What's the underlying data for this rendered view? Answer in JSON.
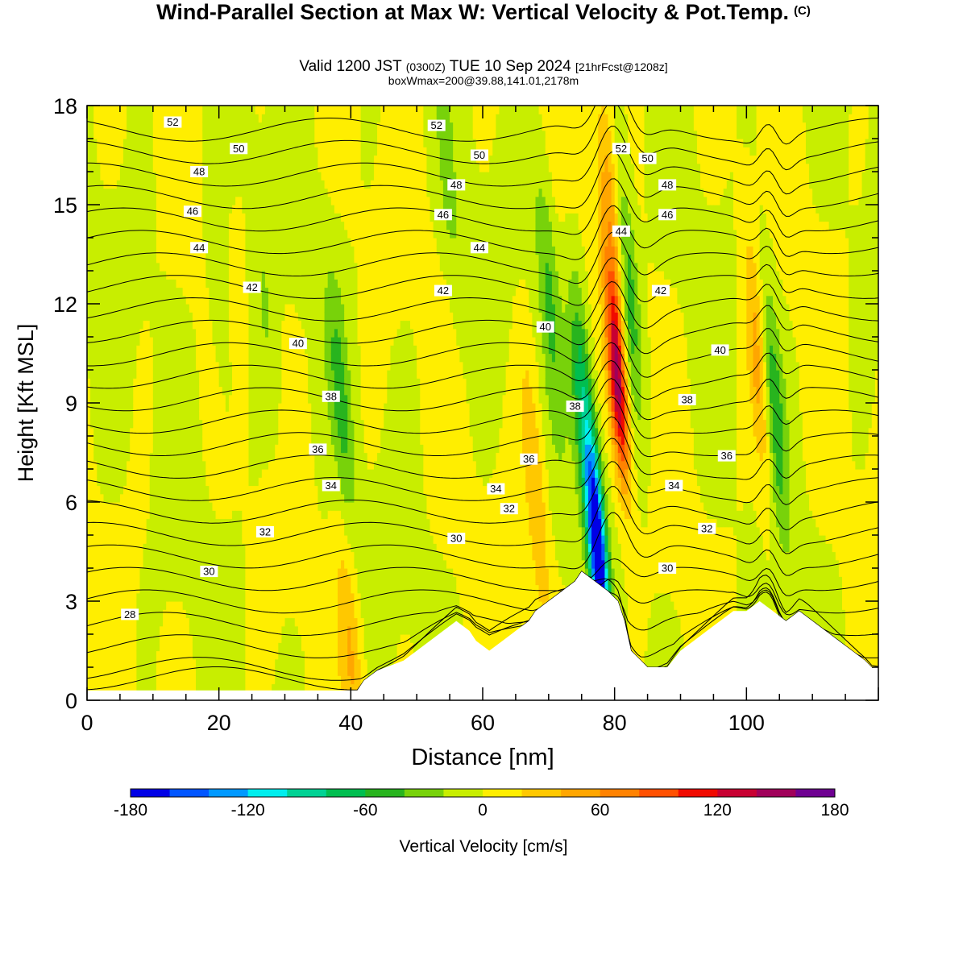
{
  "title": {
    "main": "Wind-Parallel Section at Max W: Vertical Velocity & Pot.Temp.",
    "copyright": "(C)",
    "valid_prefix": "Valid 1200 JST",
    "valid_utc": "(0300Z)",
    "valid_date": "TUE 10 Sep 2024",
    "forecast": "[21hrFcst@1208z]",
    "boxinfo": "boxWmax=200@39.88,141.01,2178m"
  },
  "chart_data": {
    "type": "heatmap",
    "xlabel": "Distance [nm]",
    "ylabel": "Height [Kft MSL]",
    "xlim": [
      0,
      120
    ],
    "ylim": [
      0,
      18
    ],
    "x_ticks": [
      0,
      20,
      40,
      60,
      80,
      100
    ],
    "y_ticks": [
      0,
      3,
      6,
      9,
      12,
      15,
      18
    ],
    "colorbar": {
      "label": "Vertical Velocity [cm/s]",
      "range": [
        -180,
        180
      ],
      "tick_values": [
        -180,
        -120,
        -60,
        0,
        60,
        120,
        180
      ],
      "levels": [
        -180,
        -160,
        -140,
        -120,
        -100,
        -80,
        -60,
        -40,
        -20,
        0,
        20,
        40,
        60,
        80,
        100,
        120,
        140,
        160,
        180
      ],
      "colors": [
        "#0000e6",
        "#0055ff",
        "#0099ff",
        "#00eeee",
        "#00d294",
        "#00be50",
        "#28b41e",
        "#78d20a",
        "#c8ee00",
        "#ffee00",
        "#ffc800",
        "#ffa600",
        "#ff8200",
        "#ff5000",
        "#f00a00",
        "#c80032",
        "#a0005a",
        "#6e0091"
      ]
    },
    "terrain_kft": [
      [
        0,
        0.3
      ],
      [
        41,
        0.3
      ],
      [
        42,
        0.6
      ],
      [
        44,
        0.9
      ],
      [
        48,
        1.2
      ],
      [
        50,
        1.5
      ],
      [
        52,
        1.8
      ],
      [
        54,
        2.1
      ],
      [
        56,
        2.4
      ],
      [
        58,
        2.1
      ],
      [
        59,
        1.8
      ],
      [
        61,
        1.5
      ],
      [
        63,
        1.8
      ],
      [
        65,
        2.1
      ],
      [
        67,
        2.4
      ],
      [
        68,
        2.7
      ],
      [
        70,
        3.0
      ],
      [
        72,
        3.3
      ],
      [
        74,
        3.6
      ],
      [
        75,
        3.9
      ],
      [
        77,
        3.6
      ],
      [
        79,
        3.3
      ],
      [
        80.5,
        3.0
      ],
      [
        81.5,
        2.4
      ],
      [
        82.5,
        1.5
      ],
      [
        84,
        1.2
      ],
      [
        85,
        1.0
      ],
      [
        88,
        1.0
      ],
      [
        90,
        1.5
      ],
      [
        92,
        1.8
      ],
      [
        94,
        2.1
      ],
      [
        96,
        2.4
      ],
      [
        98,
        2.7
      ],
      [
        100,
        2.7
      ],
      [
        102,
        3.0
      ],
      [
        104,
        2.7
      ],
      [
        106,
        2.4
      ],
      [
        108,
        2.7
      ],
      [
        110,
        2.4
      ],
      [
        112,
        2.1
      ],
      [
        114,
        1.8
      ],
      [
        116,
        1.5
      ],
      [
        118,
        1.2
      ],
      [
        119,
        1.0
      ],
      [
        120,
        1.0
      ]
    ],
    "w_features": [
      {
        "x": 80.5,
        "y": 9.5,
        "w": 140
      },
      {
        "x": 77.5,
        "y": 4.5,
        "w": -180
      },
      {
        "x": 75.5,
        "y": 8.5,
        "w": -80
      },
      {
        "x": 79.5,
        "y": 14.5,
        "w": 60
      },
      {
        "x": 82,
        "y": 12.5,
        "w": -60
      },
      {
        "x": 104,
        "y": 9.0,
        "w": -60
      },
      {
        "x": 102,
        "y": 10.0,
        "w": 60
      },
      {
        "x": 38.5,
        "y": 9.0,
        "w": -40
      },
      {
        "x": 40,
        "y": 1.5,
        "w": 40
      },
      {
        "x": 68,
        "y": 6.5,
        "w": 40
      },
      {
        "x": 70,
        "y": 12.5,
        "w": -40
      },
      {
        "x": 20,
        "y": 12.0,
        "w": -20
      },
      {
        "x": 27,
        "y": 12.0,
        "w": -20
      },
      {
        "x": 55,
        "y": 15.0,
        "w": -20
      }
    ],
    "isentropes_theta": [
      28,
      29,
      30,
      31,
      32,
      33,
      34,
      35,
      36,
      37,
      38,
      39,
      40,
      41,
      42,
      43,
      44,
      45,
      46,
      47,
      48,
      49,
      50,
      51,
      52,
      53
    ],
    "contour_labels": [
      {
        "value": "52",
        "x": 13,
        "y": 17.5
      },
      {
        "value": "52",
        "x": 53,
        "y": 17.4
      },
      {
        "value": "52",
        "x": 81,
        "y": 16.7
      },
      {
        "value": "50",
        "x": 23,
        "y": 16.7
      },
      {
        "value": "50",
        "x": 59.5,
        "y": 16.5
      },
      {
        "value": "50",
        "x": 85,
        "y": 16.4
      },
      {
        "value": "48",
        "x": 17,
        "y": 16.0
      },
      {
        "value": "48",
        "x": 56,
        "y": 15.6
      },
      {
        "value": "48",
        "x": 88,
        "y": 15.6
      },
      {
        "value": "46",
        "x": 16,
        "y": 14.8
      },
      {
        "value": "46",
        "x": 54,
        "y": 14.7
      },
      {
        "value": "46",
        "x": 88,
        "y": 14.7
      },
      {
        "value": "44",
        "x": 17,
        "y": 13.7
      },
      {
        "value": "44",
        "x": 59.5,
        "y": 13.7
      },
      {
        "value": "44",
        "x": 81,
        "y": 14.2
      },
      {
        "value": "42",
        "x": 25,
        "y": 12.5
      },
      {
        "value": "42",
        "x": 54,
        "y": 12.4
      },
      {
        "value": "42",
        "x": 87,
        "y": 12.4
      },
      {
        "value": "40",
        "x": 32,
        "y": 10.8
      },
      {
        "value": "40",
        "x": 69.5,
        "y": 11.3
      },
      {
        "value": "40",
        "x": 96,
        "y": 10.6
      },
      {
        "value": "38",
        "x": 37,
        "y": 9.2
      },
      {
        "value": "38",
        "x": 74,
        "y": 8.9
      },
      {
        "value": "38",
        "x": 91,
        "y": 9.1
      },
      {
        "value": "36",
        "x": 35,
        "y": 7.6
      },
      {
        "value": "36",
        "x": 67,
        "y": 7.3
      },
      {
        "value": "36",
        "x": 97,
        "y": 7.4
      },
      {
        "value": "34",
        "x": 37,
        "y": 6.5
      },
      {
        "value": "34",
        "x": 62,
        "y": 6.4
      },
      {
        "value": "34",
        "x": 89,
        "y": 6.5
      },
      {
        "value": "32",
        "x": 27,
        "y": 5.1
      },
      {
        "value": "32",
        "x": 64,
        "y": 5.8
      },
      {
        "value": "32",
        "x": 94,
        "y": 5.2
      },
      {
        "value": "30",
        "x": 18.5,
        "y": 3.9
      },
      {
        "value": "30",
        "x": 56,
        "y": 4.9
      },
      {
        "value": "30",
        "x": 88,
        "y": 4.0
      },
      {
        "value": "28",
        "x": 6.5,
        "y": 2.6
      }
    ]
  }
}
